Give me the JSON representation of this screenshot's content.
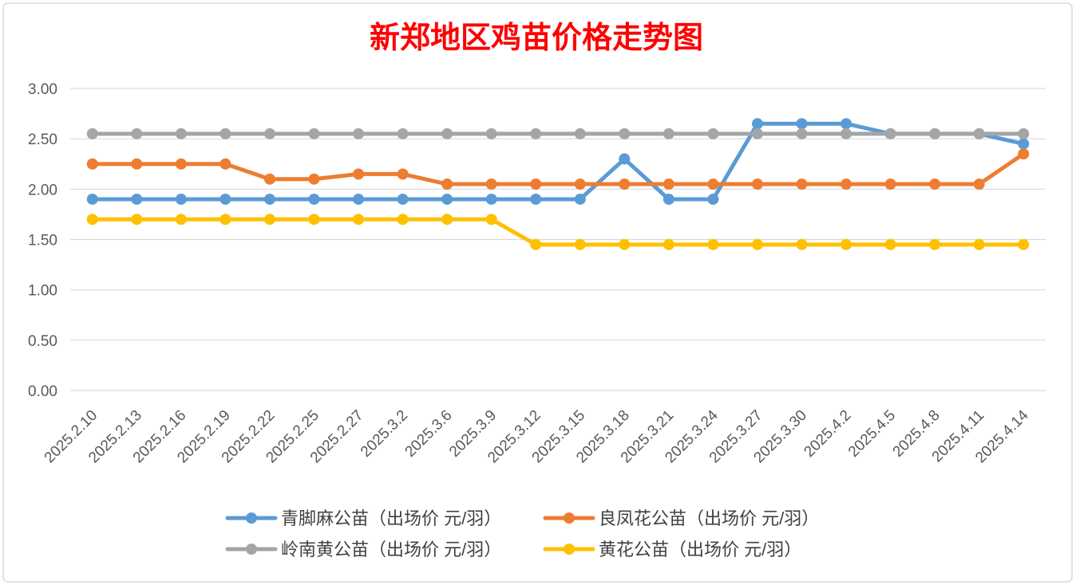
{
  "chart_data": {
    "type": "line",
    "title": "新郑地区鸡苗价格走势图",
    "title_color": "#FF0000",
    "categories": [
      "2025.2.10",
      "2025.2.13",
      "2025.2.16",
      "2025.2.19",
      "2025.2.22",
      "2025.2.25",
      "2025.2.27",
      "2025.3.2",
      "2025.3.6",
      "2025.3.9",
      "2025.3.12",
      "2025.3.15",
      "2025.3.18",
      "2025.3.21",
      "2025.3.24",
      "2025.3.27",
      "2025.3.30",
      "2025.4.2",
      "2025.4.5",
      "2025.4.8",
      "2025.4.11",
      "2025.4.14"
    ],
    "ylim": [
      0,
      3
    ],
    "yticks": [
      "0.00",
      "0.50",
      "1.00",
      "1.50",
      "2.00",
      "2.50",
      "3.00"
    ],
    "grid": true,
    "legend_position": "bottom",
    "series": [
      {
        "name": "青脚麻公苗（出场价 元/羽）",
        "color": "#5B9BD5",
        "values": [
          1.9,
          1.9,
          1.9,
          1.9,
          1.9,
          1.9,
          1.9,
          1.9,
          1.9,
          1.9,
          1.9,
          1.9,
          2.3,
          1.9,
          1.9,
          2.65,
          2.65,
          2.65,
          2.55,
          2.55,
          2.55,
          2.45
        ]
      },
      {
        "name": "良凤花公苗（出场价 元/羽）",
        "color": "#ED7D31",
        "values": [
          2.25,
          2.25,
          2.25,
          2.25,
          2.1,
          2.1,
          2.15,
          2.15,
          2.05,
          2.05,
          2.05,
          2.05,
          2.05,
          2.05,
          2.05,
          2.05,
          2.05,
          2.05,
          2.05,
          2.05,
          2.05,
          2.35
        ]
      },
      {
        "name": "岭南黄公苗（出场价 元/羽）",
        "color": "#A5A5A5",
        "values": [
          2.55,
          2.55,
          2.55,
          2.55,
          2.55,
          2.55,
          2.55,
          2.55,
          2.55,
          2.55,
          2.55,
          2.55,
          2.55,
          2.55,
          2.55,
          2.55,
          2.55,
          2.55,
          2.55,
          2.55,
          2.55,
          2.55
        ]
      },
      {
        "name": "黄花公苗（出场价 元/羽）",
        "color": "#FFC000",
        "values": [
          1.7,
          1.7,
          1.7,
          1.7,
          1.7,
          1.7,
          1.7,
          1.7,
          1.7,
          1.7,
          1.45,
          1.45,
          1.45,
          1.45,
          1.45,
          1.45,
          1.45,
          1.45,
          1.45,
          1.45,
          1.45,
          1.45
        ]
      }
    ]
  }
}
